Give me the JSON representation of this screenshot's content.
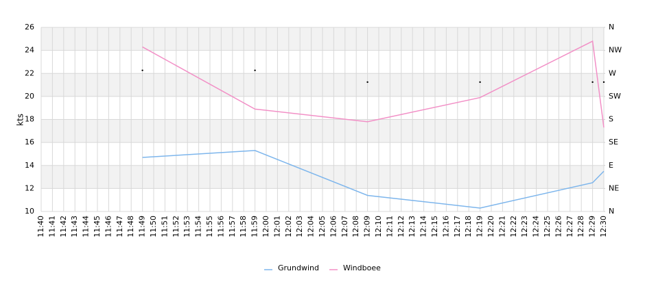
{
  "chart_data": {
    "type": "line",
    "y_label": "kts",
    "categories": [
      "11:40",
      "11:41",
      "11:42",
      "11:43",
      "11:44",
      "11:45",
      "11:46",
      "11:47",
      "11:48",
      "11:49",
      "11:50",
      "11:51",
      "11:52",
      "11:53",
      "11:54",
      "11:55",
      "11:56",
      "11:57",
      "11:58",
      "11:59",
      "12:00",
      "12:01",
      "12:02",
      "12:03",
      "12:04",
      "12:05",
      "12:06",
      "12:07",
      "12:08",
      "12:09",
      "12:10",
      "12:11",
      "12:12",
      "12:13",
      "12:14",
      "12:15",
      "12:16",
      "12:17",
      "12:18",
      "12:19",
      "12:20",
      "12:21",
      "12:22",
      "12:23",
      "12:24",
      "12:25",
      "12:26",
      "12:27",
      "12:28",
      "12:29",
      "12:30"
    ],
    "series": [
      {
        "name": "Grundwind",
        "color": "#7cb5ec",
        "x": [
          "11:49",
          "11:59",
          "12:09",
          "12:19",
          "12:29",
          "12:30"
        ],
        "values": [
          14.7,
          15.3,
          11.4,
          10.3,
          12.5,
          13.5
        ]
      },
      {
        "name": "Windboee",
        "color": "#f28fc6",
        "x": [
          "11:49",
          "11:59",
          "12:09",
          "12:19",
          "12:29",
          "12:30"
        ],
        "values": [
          24.3,
          18.9,
          17.8,
          19.9,
          24.8,
          17.3
        ]
      },
      {
        "type": "scatter",
        "color": "#000000",
        "axis": "y2",
        "x": [
          "11:49",
          "11:59",
          "12:09",
          "12:19",
          "12:29",
          "12:30"
        ],
        "values": [
          276,
          276,
          253,
          253,
          253,
          253
        ]
      }
    ],
    "ylim": [
      10,
      26
    ],
    "yticks": [
      10,
      12,
      14,
      16,
      18,
      20,
      22,
      24,
      26
    ],
    "y2lim": [
      0,
      360
    ],
    "y2ticks": [
      {
        "value": 0,
        "label": "N"
      },
      {
        "value": 45,
        "label": "NE"
      },
      {
        "value": 90,
        "label": "E"
      },
      {
        "value": 135,
        "label": "SE"
      },
      {
        "value": 180,
        "label": "S"
      },
      {
        "value": 225,
        "label": "SW"
      },
      {
        "value": 270,
        "label": "W"
      },
      {
        "value": 315,
        "label": "NW"
      },
      {
        "value": 360,
        "label": "N"
      }
    ],
    "band_color": "#f2f2f2",
    "grid": true,
    "legend": "bottom"
  }
}
